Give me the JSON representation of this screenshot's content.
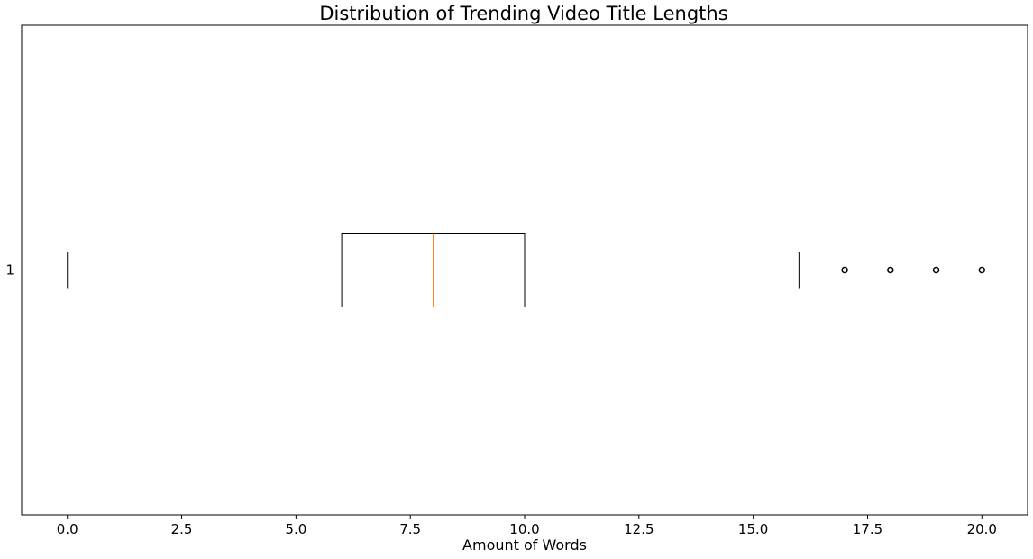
{
  "chart_data": {
    "type": "boxplot",
    "orientation": "horizontal",
    "title": "Distribution of Trending Video Title Lengths",
    "xlabel": "Amount of Words",
    "ylabel": "",
    "xlim": [
      -1,
      21
    ],
    "x_ticks": [
      0.0,
      2.5,
      5.0,
      7.5,
      10.0,
      12.5,
      15.0,
      17.5,
      20.0
    ],
    "x_tick_labels": [
      "0.0",
      "2.5",
      "5.0",
      "7.5",
      "10.0",
      "12.5",
      "15.0",
      "17.5",
      "20.0"
    ],
    "y_ticks": [
      1
    ],
    "y_tick_labels": [
      "1"
    ],
    "grid": false,
    "boxes": [
      {
        "position": 1,
        "whisker_low": 0,
        "q1": 6,
        "median": 8,
        "q3": 10,
        "whisker_high": 16,
        "outliers": [
          17,
          18,
          19,
          20
        ]
      }
    ],
    "colors": {
      "box": "#000000",
      "median": "#ff7f0e",
      "outlier": "#000000"
    }
  }
}
